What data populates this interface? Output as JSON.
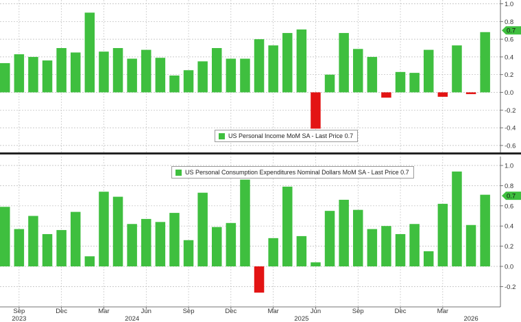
{
  "colors": {
    "positive": "#3fbf3f",
    "negative": "#e31414",
    "grid": "#b8b8b8",
    "axis_text": "#333333",
    "divider": "#222222"
  },
  "chart_data": [
    {
      "type": "bar",
      "legend": "US Personal Income MoM SA - Last Price 0.7",
      "last_price": "0.7",
      "ylim": [
        -0.7,
        1.0
      ],
      "yticks": [
        1.0,
        0.8,
        0.6,
        0.4,
        0.2,
        0.0,
        -0.2,
        -0.4,
        -0.6
      ],
      "ytick_labels": [
        "1.0",
        "0.8",
        "0.6",
        "0.4",
        "0.2",
        "0.0",
        "-0.2",
        "-0.4",
        "-0.6"
      ],
      "grid": true,
      "values": [
        0.33,
        0.43,
        0.4,
        0.36,
        0.5,
        0.45,
        0.9,
        0.46,
        0.5,
        0.38,
        0.48,
        0.39,
        0.19,
        0.25,
        0.35,
        0.5,
        0.38,
        0.38,
        0.6,
        0.53,
        0.67,
        0.71,
        -0.41,
        0.2,
        0.67,
        0.49,
        0.4,
        -0.06,
        0.23,
        0.22,
        0.48,
        -0.05,
        0.53,
        -0.02,
        0.68
      ]
    },
    {
      "type": "bar",
      "legend": "US Personal Consumption Expenditures Nominal Dollars MoM SA - Last Price 0.7",
      "last_price": "0.7",
      "ylim": [
        -0.3,
        1.1
      ],
      "yticks": [
        1.0,
        0.8,
        0.6,
        0.4,
        0.2,
        0.0,
        -0.2
      ],
      "ytick_labels": [
        "1.0",
        "0.8",
        "0.6",
        "0.4",
        "0.2",
        "0.0",
        "-0.2"
      ],
      "grid": true,
      "values": [
        0.59,
        0.37,
        0.5,
        0.32,
        0.36,
        0.54,
        0.1,
        0.74,
        0.69,
        0.42,
        0.47,
        0.44,
        0.53,
        0.26,
        0.73,
        0.39,
        0.43,
        0.86,
        -0.26,
        0.28,
        0.79,
        0.3,
        0.04,
        0.55,
        0.66,
        0.56,
        0.37,
        0.4,
        0.32,
        0.42,
        0.15,
        0.62,
        0.94,
        0.41,
        0.71
      ]
    }
  ],
  "x_axis": {
    "month_labels": [
      {
        "index": 1,
        "label": "Sep"
      },
      {
        "index": 4,
        "label": "Dec"
      },
      {
        "index": 7,
        "label": "Mar"
      },
      {
        "index": 10,
        "label": "Jun"
      },
      {
        "index": 13,
        "label": "Sep"
      },
      {
        "index": 16,
        "label": "Dec"
      },
      {
        "index": 19,
        "label": "Mar"
      },
      {
        "index": 22,
        "label": "Jun"
      },
      {
        "index": 25,
        "label": "Sep"
      },
      {
        "index": 28,
        "label": "Dec"
      },
      {
        "index": 31,
        "label": "Mar"
      }
    ],
    "year_labels": [
      {
        "index": 1,
        "label": "2023"
      },
      {
        "index": 9,
        "label": "2024"
      },
      {
        "index": 21,
        "label": "2025"
      },
      {
        "index": 33,
        "label": "2026"
      }
    ]
  }
}
